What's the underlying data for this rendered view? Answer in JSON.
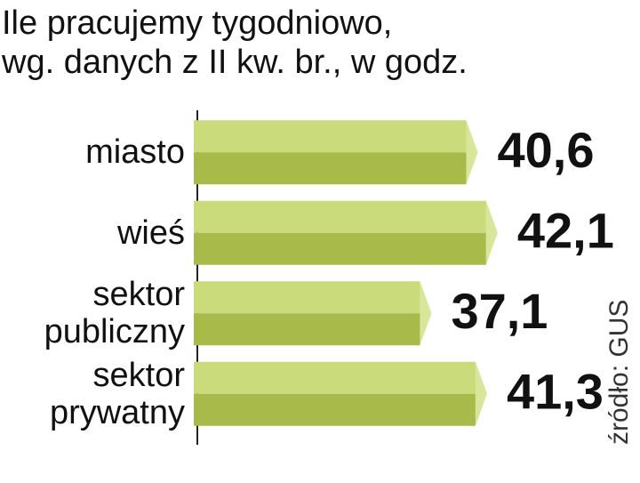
{
  "chart_data": {
    "type": "bar",
    "orientation": "horizontal",
    "title": "Ile pracujemy tygodniowo,",
    "subtitle": "wg. danych z II kw. br., w godz.",
    "categories": [
      "miasto",
      "wieś",
      "sektor publiczny",
      "sektor prywatny"
    ],
    "values": [
      40.6,
      42.1,
      37.1,
      41.3
    ],
    "value_labels": [
      "40,6",
      "42,1",
      "37,1",
      "41,3"
    ],
    "colors": {
      "top": "#c9db7a",
      "bottom": "#a8bb4a",
      "tip": "#d8e69a"
    },
    "xlim": [
      20,
      45
    ],
    "source": "źródło: GUS"
  }
}
